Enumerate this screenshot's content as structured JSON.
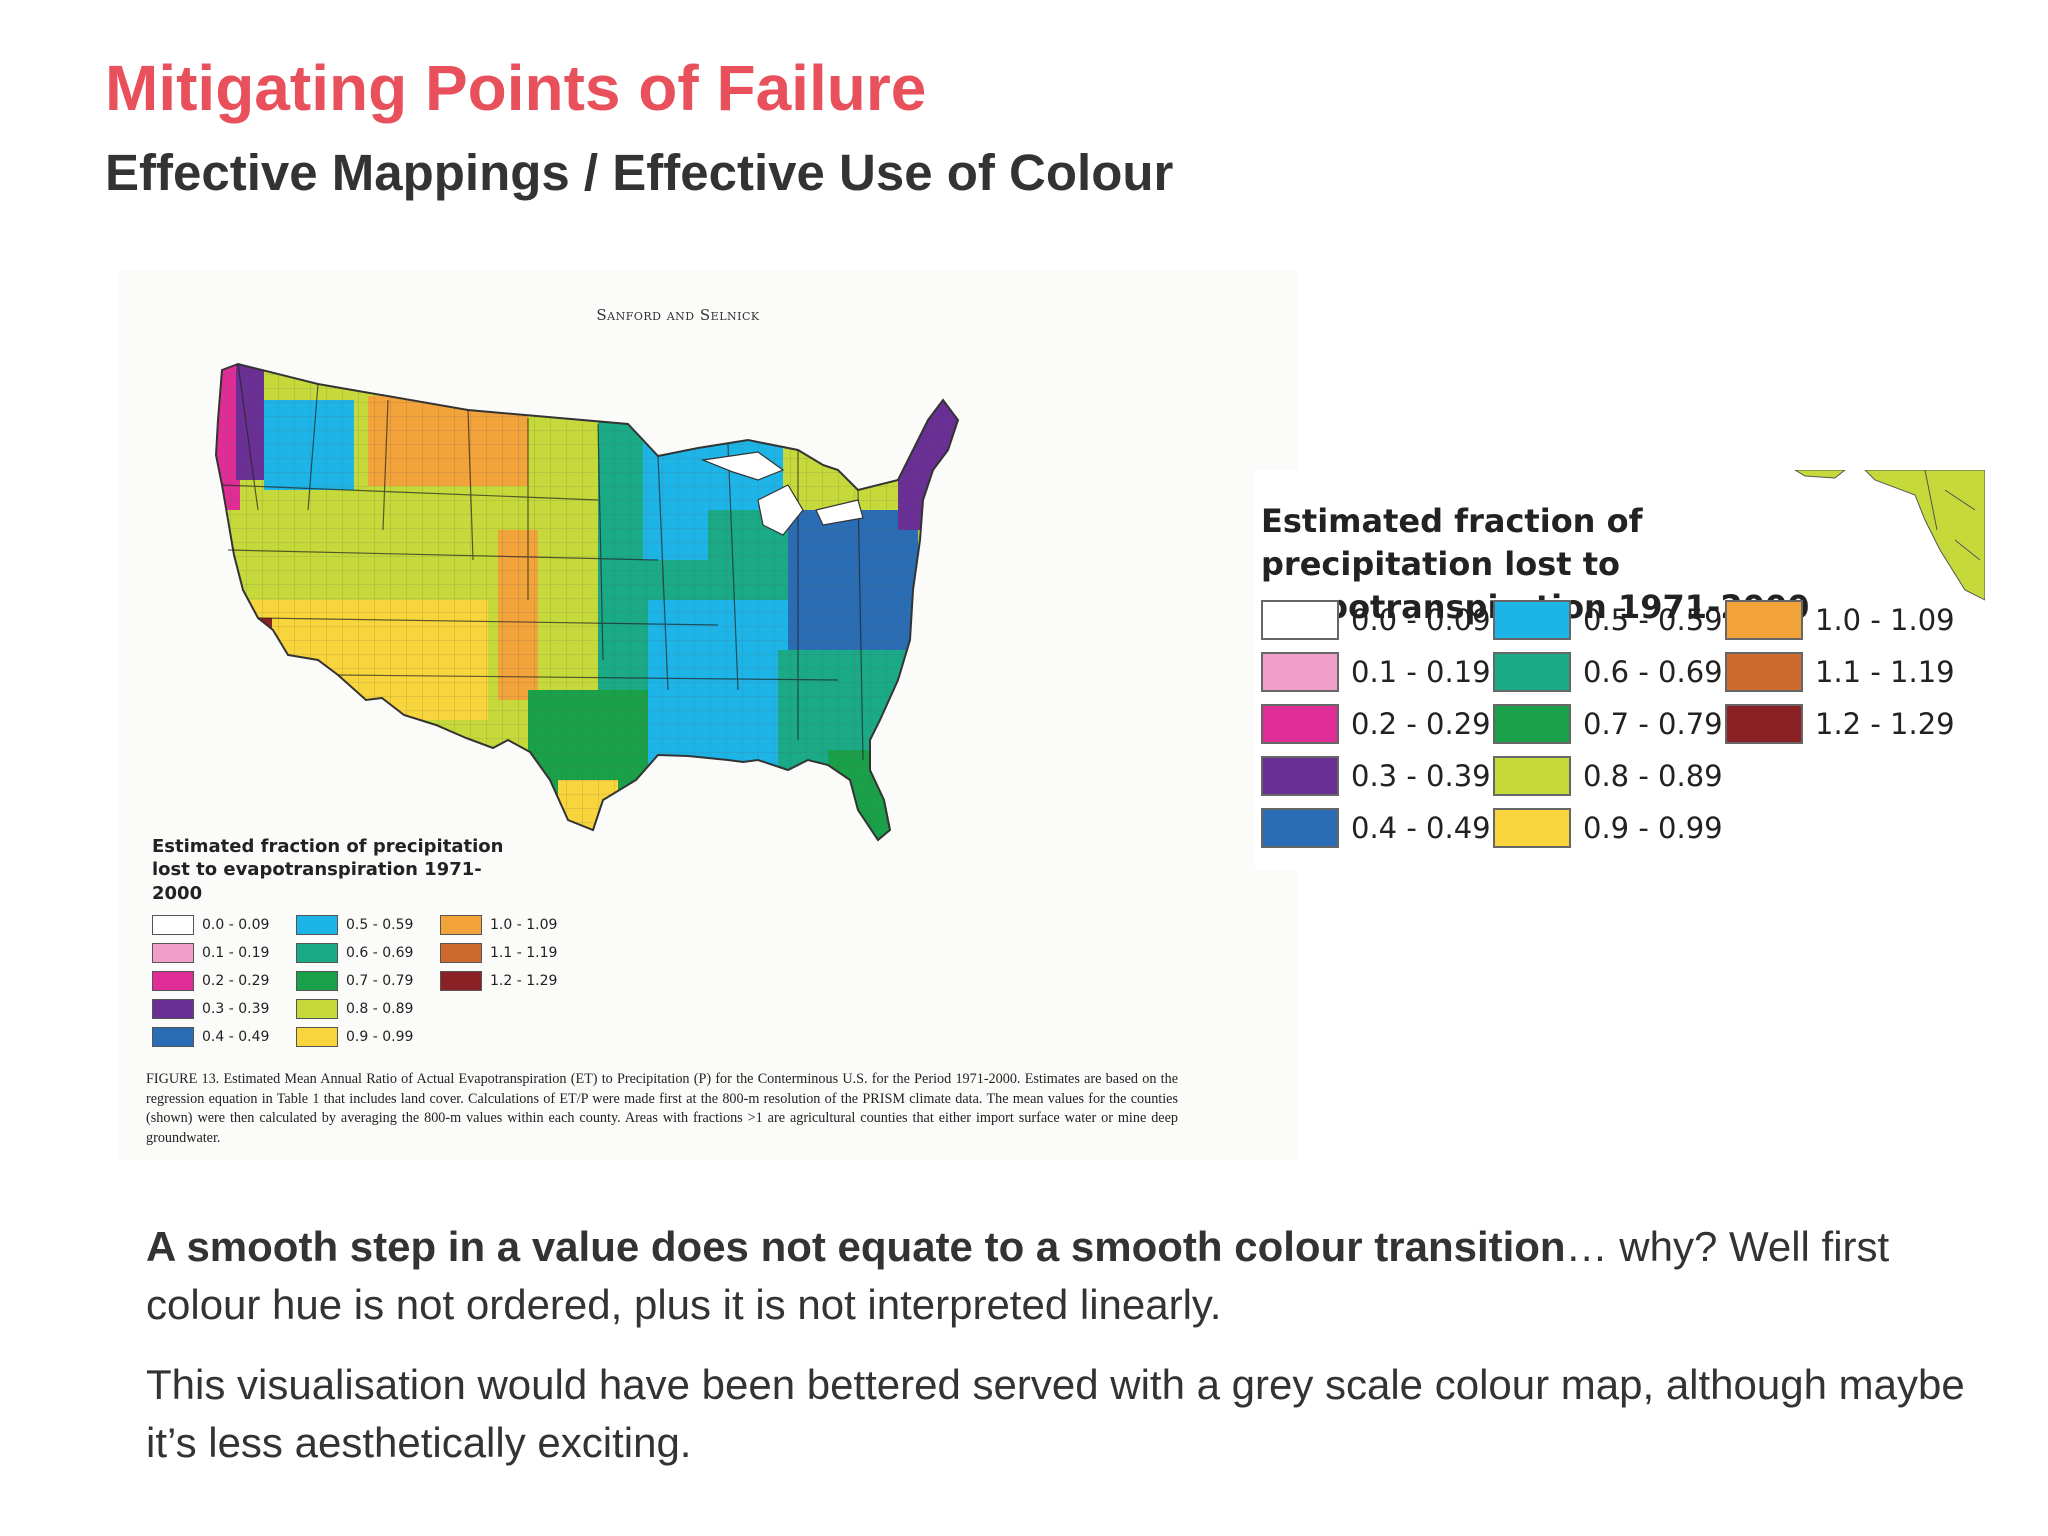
{
  "slide": {
    "title": "Mitigating Points of Failure",
    "subtitle_section": "Effective Mappings / ",
    "subtitle_topic": "Effective Use of Colour"
  },
  "figure": {
    "running_head": "Sanford and Selnick",
    "legend_title": "Estimated fraction of precipitation lost to evapotranspiration 1971-2000",
    "legend": [
      {
        "label": "0.0 - 0.09",
        "color": "#ffffff"
      },
      {
        "label": "0.1 - 0.19",
        "color": "#f0a0c8"
      },
      {
        "label": "0.2 - 0.29",
        "color": "#df2d95"
      },
      {
        "label": "0.3 - 0.39",
        "color": "#6a2f94"
      },
      {
        "label": "0.4 - 0.49",
        "color": "#2a6db5"
      },
      {
        "label": "0.5 - 0.59",
        "color": "#1db5e8"
      },
      {
        "label": "0.6 - 0.69",
        "color": "#1aaa86"
      },
      {
        "label": "0.7 - 0.79",
        "color": "#19a048"
      },
      {
        "label": "0.8 - 0.89",
        "color": "#c6d93a"
      },
      {
        "label": "0.9 - 0.99",
        "color": "#f8d53c"
      },
      {
        "label": "1.0 - 1.09",
        "color": "#f2a33a"
      },
      {
        "label": "1.1 - 1.19",
        "color": "#cc6a2e"
      },
      {
        "label": "1.2 - 1.29",
        "color": "#8a2124"
      }
    ],
    "caption": "FIGURE 13. Estimated Mean Annual Ratio of Actual Evapotranspiration (ET) to Precipitation (P) for the Conterminous U.S. for the Period 1971-2000. Estimates are based on the regression equation in Table 1 that includes land cover. Calculations of ET/P were made first at the 800-m resolution of the PRISM climate data. The mean values for the counties (shown) were then calculated by averaging the 800-m values within each county. Areas with fractions >1 are agricultural counties that either import surface water or mine deep groundwater."
  },
  "map_regions": [
    {
      "region": "pacific-northwest-coast",
      "color": "#df2d95"
    },
    {
      "region": "cascades",
      "color": "#6a2f94"
    },
    {
      "region": "northern-rockies",
      "color": "#1db5e8"
    },
    {
      "region": "montana-east",
      "color": "#f2a33a"
    },
    {
      "region": "great-basin",
      "color": "#c6d93a"
    },
    {
      "region": "southwest-desert",
      "color": "#f8d53c"
    },
    {
      "region": "high-plains",
      "color": "#f2a33a"
    },
    {
      "region": "central-plains",
      "color": "#c6d93a"
    },
    {
      "region": "prairie-belt",
      "color": "#1aaa86"
    },
    {
      "region": "great-lakes",
      "color": "#1db5e8"
    },
    {
      "region": "midwest-east",
      "color": "#1aaa86"
    },
    {
      "region": "south-central",
      "color": "#1db5e8"
    },
    {
      "region": "southeast",
      "color": "#1aaa86"
    },
    {
      "region": "appalachians",
      "color": "#2a6db5"
    },
    {
      "region": "new-england",
      "color": "#6a2f94"
    },
    {
      "region": "texas-central",
      "color": "#19a048"
    },
    {
      "region": "texas-south",
      "color": "#f8d53c"
    },
    {
      "region": "florida",
      "color": "#19a048"
    },
    {
      "region": "california-central-valley",
      "color": "#c6d93a"
    },
    {
      "region": "california-coast",
      "color": "#f8d53c"
    },
    {
      "region": "imperial-valley",
      "color": "#8a2124"
    }
  ],
  "body": {
    "p1_strong": "A smooth step in a value does not equate to a smooth colour transition",
    "p1_rest": "… why? Well first colour hue is not ordered, plus it is not interpreted linearly.",
    "p2": "This visualisation would have been bettered served with a grey scale colour map, although maybe it’s less aesthetically exciting."
  }
}
